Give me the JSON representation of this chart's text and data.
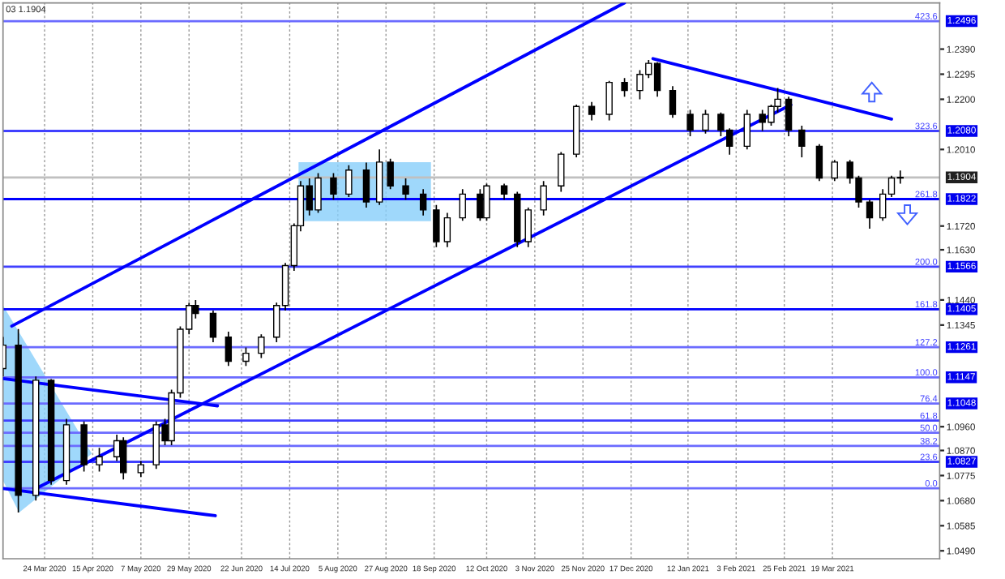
{
  "chart_data": {
    "type": "candlestick",
    "title": "03 1.1904",
    "x": [
      "2020-03-05",
      "2020-03-12",
      "2020-03-20",
      "2020-03-27",
      "2020-04-03",
      "2020-04-11",
      "2020-04-18",
      "2020-04-26",
      "2020-04-29",
      "2020-05-07",
      "2020-05-14",
      "2020-05-18",
      "2020-05-21",
      "2020-05-25",
      "2020-05-29",
      "2020-06-01",
      "2020-06-09",
      "2020-06-16",
      "2020-06-24",
      "2020-07-01",
      "2020-07-08",
      "2020-07-12",
      "2020-07-16",
      "2020-07-19",
      "2020-07-23",
      "2020-07-27",
      "2020-08-03",
      "2020-08-10",
      "2020-08-18",
      "2020-08-24",
      "2020-08-29",
      "2020-09-05",
      "2020-09-13",
      "2020-09-19",
      "2020-09-24",
      "2020-10-01",
      "2020-10-09",
      "2020-10-12",
      "2020-10-20",
      "2020-10-26",
      "2020-10-31",
      "2020-11-07",
      "2020-11-15",
      "2020-11-22",
      "2020-11-29",
      "2020-12-07",
      "2020-12-14",
      "2020-12-21",
      "2020-12-25",
      "2020-12-29",
      "2021-01-05",
      "2021-01-13",
      "2021-01-20",
      "2021-01-27",
      "2021-01-31",
      "2021-02-08",
      "2021-02-15",
      "2021-02-19",
      "2021-02-22",
      "2021-02-27",
      "2021-03-05",
      "2021-03-13",
      "2021-03-20",
      "2021-03-27",
      "2021-03-31",
      "2021-04-05",
      "2021-04-11",
      "2021-04-15",
      "2021-04-19"
    ],
    "ohlc": [
      [
        1.118,
        1.13,
        1.115,
        1.1269
      ],
      [
        1.1269,
        1.133,
        1.0635,
        1.07
      ],
      [
        1.07,
        1.115,
        1.068,
        1.1136
      ],
      [
        1.1136,
        1.114,
        1.074,
        1.0756
      ],
      [
        1.0756,
        1.099,
        1.074,
        1.0967
      ],
      [
        1.0967,
        1.098,
        1.079,
        1.0816
      ],
      [
        1.0816,
        1.088,
        1.079,
        1.0846
      ],
      [
        1.0846,
        1.093,
        1.083,
        1.0907
      ],
      [
        1.0907,
        1.092,
        1.076,
        1.0786
      ],
      [
        1.0786,
        1.083,
        1.077,
        1.0816
      ],
      [
        1.0816,
        1.098,
        1.08,
        1.0967
      ],
      [
        1.0967,
        1.099,
        1.089,
        1.0907
      ],
      [
        1.0907,
        1.11,
        1.089,
        1.1088
      ],
      [
        1.1088,
        1.134,
        1.107,
        1.1329
      ],
      [
        1.1329,
        1.143,
        1.131,
        1.1419
      ],
      [
        1.1419,
        1.144,
        1.137,
        1.1389
      ],
      [
        1.1389,
        1.14,
        1.128,
        1.1299
      ],
      [
        1.1299,
        1.132,
        1.119,
        1.1208
      ],
      [
        1.1208,
        1.126,
        1.119,
        1.1238
      ],
      [
        1.1238,
        1.131,
        1.122,
        1.1299
      ],
      [
        1.1299,
        1.143,
        1.128,
        1.1419
      ],
      [
        1.1419,
        1.158,
        1.14,
        1.157
      ],
      [
        1.157,
        1.173,
        1.155,
        1.1721
      ],
      [
        1.1721,
        1.189,
        1.17,
        1.1872
      ],
      [
        1.1872,
        1.19,
        1.176,
        1.1781
      ],
      [
        1.1781,
        1.192,
        1.177,
        1.1902
      ],
      [
        1.1902,
        1.192,
        1.182,
        1.1841
      ],
      [
        1.1841,
        1.195,
        1.183,
        1.1932
      ],
      [
        1.1932,
        1.196,
        1.179,
        1.1811
      ],
      [
        1.1811,
        1.201,
        1.18,
        1.1962
      ],
      [
        1.1962,
        1.1975,
        1.186,
        1.1872
      ],
      [
        1.1872,
        1.19,
        1.182,
        1.1841
      ],
      [
        1.1841,
        1.186,
        1.176,
        1.1781
      ],
      [
        1.1781,
        1.18,
        1.164,
        1.1661
      ],
      [
        1.1661,
        1.177,
        1.164,
        1.1751
      ],
      [
        1.1751,
        1.186,
        1.174,
        1.1841
      ],
      [
        1.1841,
        1.186,
        1.174,
        1.1751
      ],
      [
        1.1751,
        1.188,
        1.174,
        1.1872
      ],
      [
        1.1872,
        1.188,
        1.182,
        1.1841
      ],
      [
        1.1841,
        1.185,
        1.164,
        1.1661
      ],
      [
        1.1661,
        1.179,
        1.164,
        1.1781
      ],
      [
        1.1781,
        1.189,
        1.176,
        1.1872
      ],
      [
        1.1872,
        1.2,
        1.185,
        1.1992
      ],
      [
        1.1992,
        1.218,
        1.198,
        1.2173
      ],
      [
        1.2173,
        1.219,
        1.212,
        1.2143
      ],
      [
        1.2143,
        1.227,
        1.212,
        1.2264
      ],
      [
        1.2264,
        1.228,
        1.221,
        1.2233
      ],
      [
        1.2233,
        1.231,
        1.22,
        1.2294
      ],
      [
        1.2294,
        1.2349,
        1.228,
        1.2336
      ],
      [
        1.2336,
        1.234,
        1.221,
        1.2233
      ],
      [
        1.2233,
        1.225,
        1.213,
        1.2143
      ],
      [
        1.2143,
        1.216,
        1.206,
        1.2083
      ],
      [
        1.2083,
        1.216,
        1.207,
        1.2143
      ],
      [
        1.2143,
        1.215,
        1.206,
        1.2083
      ],
      [
        1.2083,
        1.209,
        1.199,
        1.2022
      ],
      [
        1.2022,
        1.216,
        1.201,
        1.2143
      ],
      [
        1.2143,
        1.216,
        1.208,
        1.2113
      ],
      [
        1.2113,
        1.218,
        1.21,
        1.2173
      ],
      [
        1.2173,
        1.2243,
        1.215,
        1.22
      ],
      [
        1.22,
        1.221,
        1.206,
        1.2083
      ],
      [
        1.2083,
        1.21,
        1.198,
        1.2022
      ],
      [
        1.2022,
        1.203,
        1.189,
        1.1902
      ],
      [
        1.1902,
        1.197,
        1.189,
        1.1962
      ],
      [
        1.1962,
        1.197,
        1.188,
        1.1902
      ],
      [
        1.1902,
        1.191,
        1.179,
        1.1811
      ],
      [
        1.1811,
        1.182,
        1.171,
        1.1751
      ],
      [
        1.1751,
        1.186,
        1.174,
        1.1841
      ],
      [
        1.1841,
        1.191,
        1.183,
        1.1902
      ],
      [
        1.1902,
        1.193,
        1.188,
        1.1904
      ]
    ],
    "series": [
      {
        "type": "line",
        "color": "#0000ff",
        "x": [
          "2020-03-09",
          "2020-12-14"
        ],
        "values": [
          1.1341,
          1.2565
        ]
      },
      {
        "type": "line",
        "color": "#0000ff",
        "x": [
          "2020-03-20",
          "2021-02-28"
        ],
        "values": [
          1.0726,
          1.2179
        ]
      },
      {
        "type": "line",
        "color": "#0000ff",
        "x": [
          "2020-12-27",
          "2021-04-15"
        ],
        "values": [
          1.2354,
          1.2125
        ]
      },
      {
        "type": "line",
        "color": "#0000ff",
        "x": [
          "2020-03-05",
          "2020-06-11"
        ],
        "values": [
          1.1142,
          1.1039
        ]
      },
      {
        "type": "line",
        "color": "#0000ff",
        "x": [
          "2020-03-05",
          "2020-06-10"
        ],
        "values": [
          1.0726,
          1.0623
        ]
      }
    ],
    "ref_lines": [
      {
        "axis": "y",
        "value": 1.2496,
        "label": "1.2496",
        "color": "#6b6bff"
      },
      {
        "axis": "y",
        "value": 1.208,
        "label": "1.2080",
        "color": "#4040ff"
      },
      {
        "axis": "y",
        "value": 1.1904,
        "label": "1.1904",
        "color": "#c0c0c0"
      },
      {
        "axis": "y",
        "value": 1.1822,
        "label": "1.1822",
        "color": "#0000ff"
      },
      {
        "axis": "y",
        "value": 1.1566,
        "label": "1.1566",
        "color": "#4040ff"
      },
      {
        "axis": "y",
        "value": 1.1405,
        "label": "1.1405",
        "color": "#0000ff"
      },
      {
        "axis": "y",
        "value": 1.1261,
        "label": "1.1261",
        "color": "#6b6bff"
      },
      {
        "axis": "y",
        "value": 1.1147,
        "label": "1.1147",
        "color": "#6b6bff"
      },
      {
        "axis": "y",
        "value": 1.1048,
        "label": "1.1048",
        "color": "#6b6bff"
      },
      {
        "axis": "y",
        "value": 1.0983,
        "color": "#4040ff"
      },
      {
        "axis": "y",
        "value": 1.0937,
        "color": "#6b6bff"
      },
      {
        "axis": "y",
        "value": 1.0887,
        "color": "#6b6bff"
      },
      {
        "axis": "y",
        "value": 1.0827,
        "label": "1.0827",
        "color": "#4040ff"
      },
      {
        "axis": "y",
        "value": 1.0727,
        "color": "#6b6bff"
      }
    ],
    "annotations": [
      {
        "text": "423.6",
        "x": "2021-05-06",
        "y": 1.2496
      },
      {
        "text": "323.6",
        "x": "2021-05-06",
        "y": 1.208
      },
      {
        "text": "261.8",
        "x": "2021-05-06",
        "y": 1.1822
      },
      {
        "text": "200.0",
        "x": "2021-05-06",
        "y": 1.1566
      },
      {
        "text": "161.8",
        "x": "2021-05-06",
        "y": 1.1405
      },
      {
        "text": "127.2",
        "x": "2021-05-06",
        "y": 1.1261
      },
      {
        "text": "100.0",
        "x": "2021-05-06",
        "y": 1.1147
      },
      {
        "text": "76.4",
        "x": "2021-05-06",
        "y": 1.1048
      },
      {
        "text": "61.8",
        "x": "2021-05-06",
        "y": 1.0983
      },
      {
        "text": "50.0",
        "x": "2021-05-06",
        "y": 1.0937
      },
      {
        "text": "38.2",
        "x": "2021-05-06",
        "y": 1.0887
      },
      {
        "text": "23.6",
        "x": "2021-05-06",
        "y": 1.0827
      },
      {
        "text": "0.0",
        "x": "2021-05-06",
        "y": 1.0727
      }
    ],
    "xlim": [
      "2020-03-05",
      "2021-05-07"
    ],
    "xticks": [
      {
        "value": "2020-03-24",
        "label": "24 Mar 2020"
      },
      {
        "value": "2020-04-15",
        "label": "15 Apr 2020"
      },
      {
        "value": "2020-05-07",
        "label": "7 May 2020"
      },
      {
        "value": "2020-05-29",
        "label": "29 May 2020"
      },
      {
        "value": "2020-06-22",
        "label": "22 Jun 2020"
      },
      {
        "value": "2020-07-14",
        "label": "14 Jul 2020"
      },
      {
        "value": "2020-08-05",
        "label": "5 Aug 2020"
      },
      {
        "value": "2020-08-27",
        "label": "27 Aug 2020"
      },
      {
        "value": "2020-09-18",
        "label": "18 Sep 2020"
      },
      {
        "value": "2020-10-12",
        "label": "12 Oct 2020"
      },
      {
        "value": "2020-11-03",
        "label": "3 Nov 2020"
      },
      {
        "value": "2020-11-25",
        "label": "25 Nov 2020"
      },
      {
        "value": "2020-12-17",
        "label": "17 Dec 2020"
      },
      {
        "value": "2021-01-12",
        "label": "12 Jan 2021"
      },
      {
        "value": "2021-02-03",
        "label": "3 Feb 2021"
      },
      {
        "value": "2021-02-25",
        "label": "25 Feb 2021"
      },
      {
        "value": "2021-03-19",
        "label": "19 Mar 2021"
      }
    ],
    "ylim": [
      1.046,
      1.2565
    ],
    "yticks": [
      {
        "value": 1.239,
        "label": "1.2390"
      },
      {
        "value": 1.2295,
        "label": "1.2295"
      },
      {
        "value": 1.22,
        "label": "1.2200"
      },
      {
        "value": 1.201,
        "label": "1.2010"
      },
      {
        "value": 1.172,
        "label": "1.1720"
      },
      {
        "value": 1.163,
        "label": "1.1630"
      },
      {
        "value": 1.144,
        "label": "1.1440"
      },
      {
        "value": 1.1345,
        "label": "1.1345"
      },
      {
        "value": 1.096,
        "label": "1.0960"
      },
      {
        "value": 1.087,
        "label": "1.0870"
      },
      {
        "value": 1.0775,
        "label": "1.0775"
      },
      {
        "value": 1.068,
        "label": "1.0680"
      },
      {
        "value": 1.0585,
        "label": "1.0585"
      },
      {
        "value": 1.049,
        "label": "1.0490"
      }
    ],
    "grid": "x"
  }
}
